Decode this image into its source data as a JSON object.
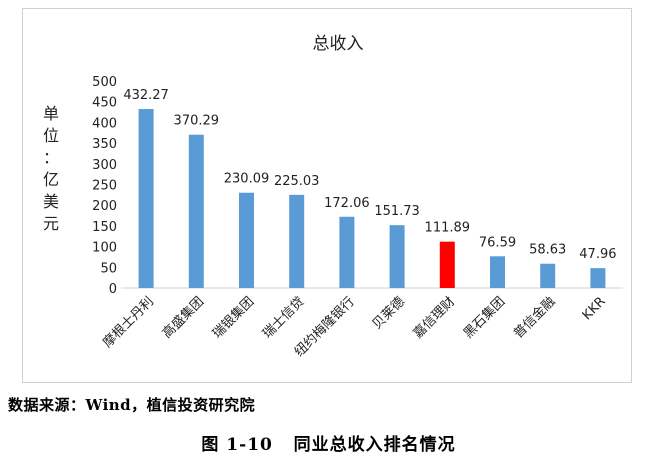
{
  "chart_data": {
    "type": "bar",
    "title": "总收入",
    "ylabel": "单位：亿美元",
    "xlabel": "",
    "ylim": [
      0,
      500
    ],
    "yticks": [
      0,
      50,
      100,
      150,
      200,
      250,
      300,
      350,
      400,
      450,
      500
    ],
    "categories": [
      "摩根士丹利",
      "高盛集团",
      "瑞银集团",
      "瑞士信贷",
      "纽约梅隆银行",
      "贝莱德",
      "嘉信理财",
      "黑石集团",
      "普信金融",
      "KKR"
    ],
    "values": [
      432.27,
      370.29,
      230.09,
      225.03,
      172.06,
      151.73,
      111.89,
      76.59,
      58.63,
      47.96
    ],
    "value_labels": [
      "432.27",
      "370.29",
      "230.09",
      "225.03",
      "172.06",
      "151.73",
      "111.89",
      "76.59",
      "58.63",
      "47.96"
    ],
    "colors": {
      "default": "#5b9bd5",
      "highlight": "#ff0000"
    },
    "highlight_index": 6,
    "grid": false,
    "legend": "none"
  },
  "source_text": "数据来源：Wind，植信投资研究院",
  "caption_text": "图 1-10   同业总收入排名情况"
}
